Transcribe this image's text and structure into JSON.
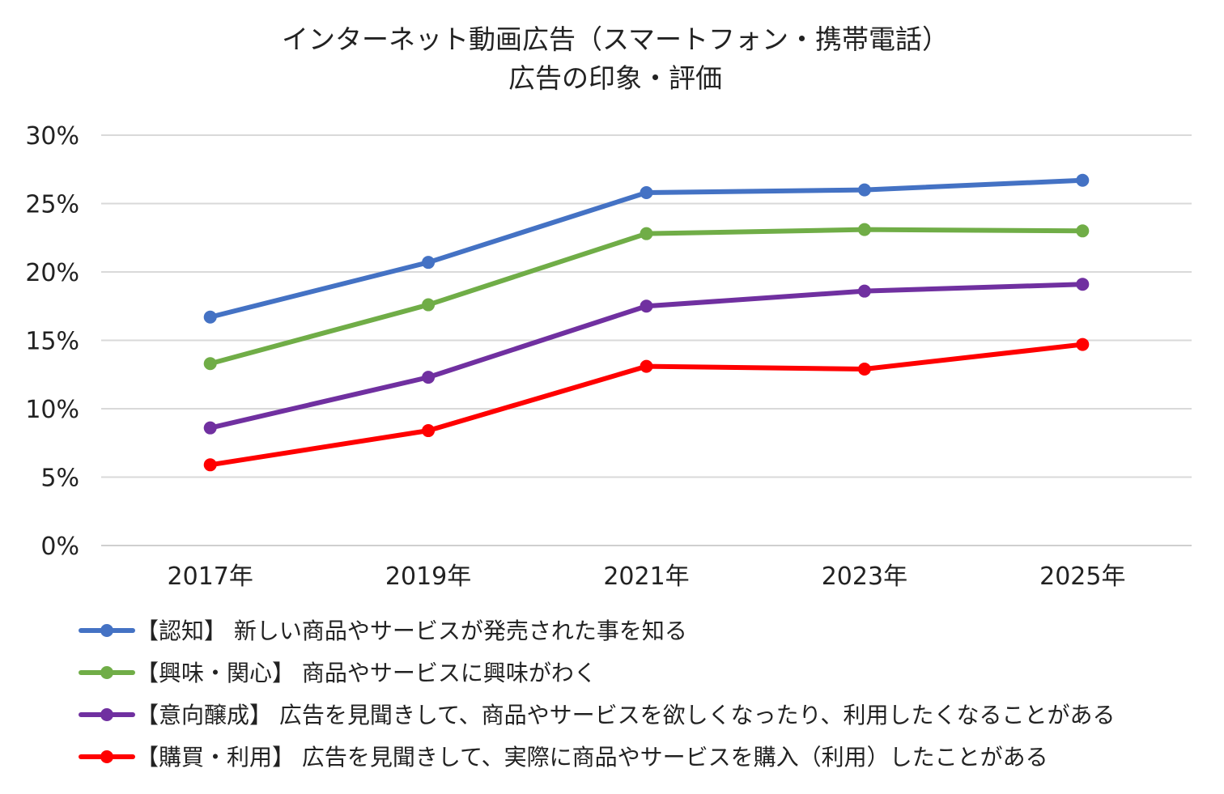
{
  "chart_data": {
    "type": "line",
    "title": "インターネット動画広告（スマートフォン・携帯電話）",
    "subtitle": "広告の印象・評価",
    "xlabel": "",
    "ylabel": "",
    "categories": [
      "2017年",
      "2019年",
      "2021年",
      "2023年",
      "2025年"
    ],
    "ylim": [
      0,
      30
    ],
    "yticks": [
      0,
      5,
      10,
      15,
      20,
      25,
      30
    ],
    "ytick_labels": [
      "0%",
      "5%",
      "10%",
      "15%",
      "20%",
      "25%",
      "30%"
    ],
    "grid": true,
    "legend_position": "bottom",
    "series": [
      {
        "name": "【認知】 新しい商品やサービスが発売された事を知る",
        "color": "#4472c4",
        "values": [
          16.7,
          20.7,
          25.8,
          26.0,
          26.7
        ]
      },
      {
        "name": "【興味・関心】 商品やサービスに興味がわく",
        "color": "#70ad47",
        "values": [
          13.3,
          17.6,
          22.8,
          23.1,
          23.0
        ]
      },
      {
        "name": "【意向醸成】 広告を見聞きして、商品やサービスを欲しくなったり、利用したくなることがある",
        "color": "#7030a0",
        "values": [
          8.6,
          12.3,
          17.5,
          18.6,
          19.1
        ]
      },
      {
        "name": "【購買・利用】 広告を見聞きして、実際に商品やサービスを購入（利用）したことがある",
        "color": "#ff0000",
        "values": [
          5.9,
          8.4,
          13.1,
          12.9,
          14.7
        ]
      }
    ]
  }
}
